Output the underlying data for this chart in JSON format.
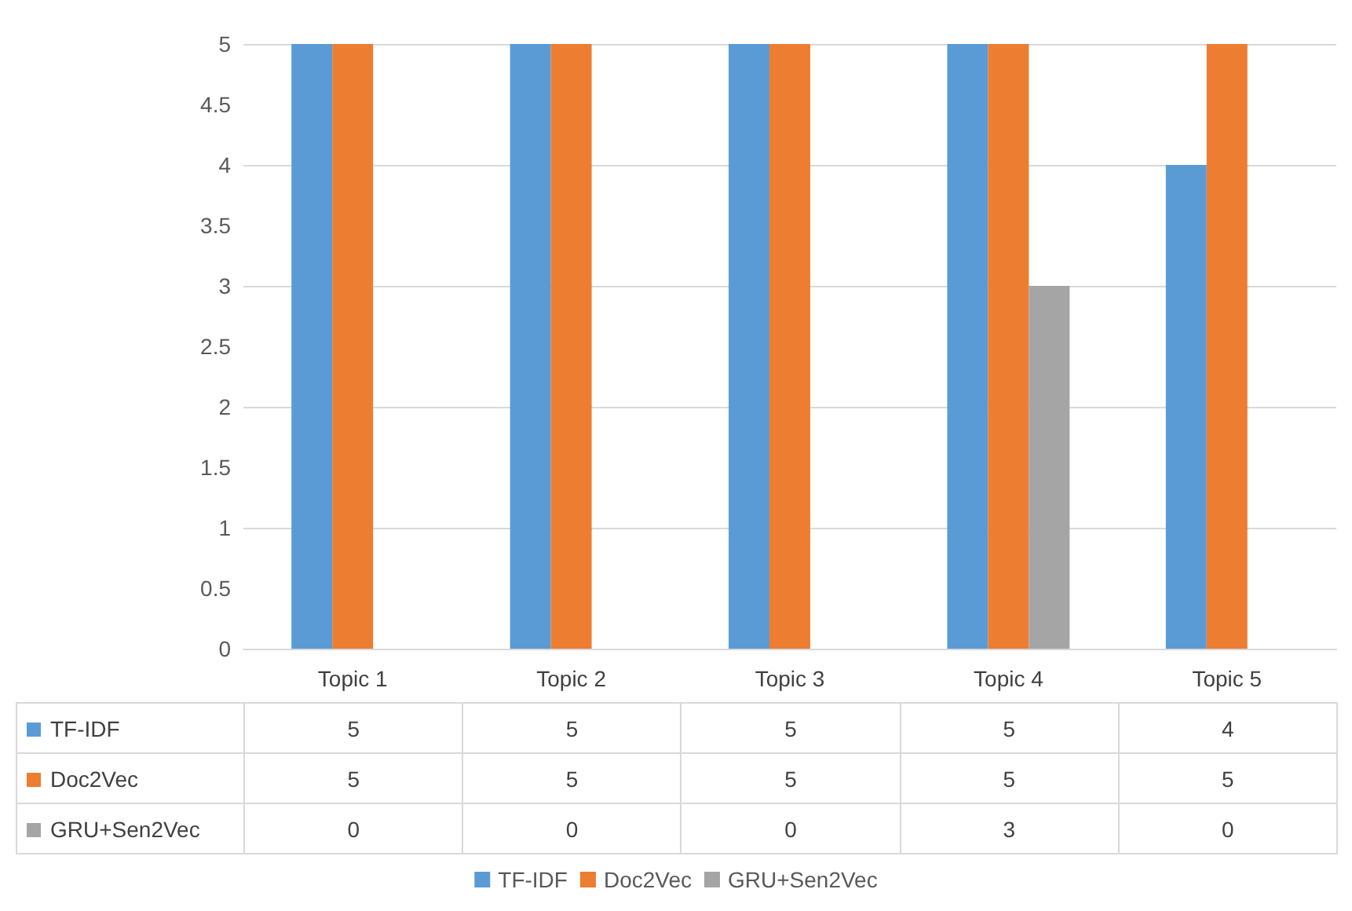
{
  "chart_data": {
    "type": "bar",
    "categories": [
      "Topic 1",
      "Topic 2",
      "Topic 3",
      "Topic 4",
      "Topic 5"
    ],
    "series": [
      {
        "name": "TF-IDF",
        "color": "#5b9bd5",
        "values": [
          5,
          5,
          5,
          5,
          4
        ]
      },
      {
        "name": "Doc2Vec",
        "color": "#ed7d31",
        "values": [
          5,
          5,
          5,
          5,
          5
        ]
      },
      {
        "name": "GRU+Sen2Vec",
        "color": "#a5a5a5",
        "values": [
          0,
          0,
          0,
          3,
          0
        ]
      }
    ],
    "ylim": [
      0,
      5
    ],
    "yticks": [
      0,
      0.5,
      1,
      1.5,
      2,
      2.5,
      3,
      3.5,
      4,
      4.5,
      5
    ],
    "grid": "y",
    "legend": "bottom",
    "data_labels": true
  }
}
